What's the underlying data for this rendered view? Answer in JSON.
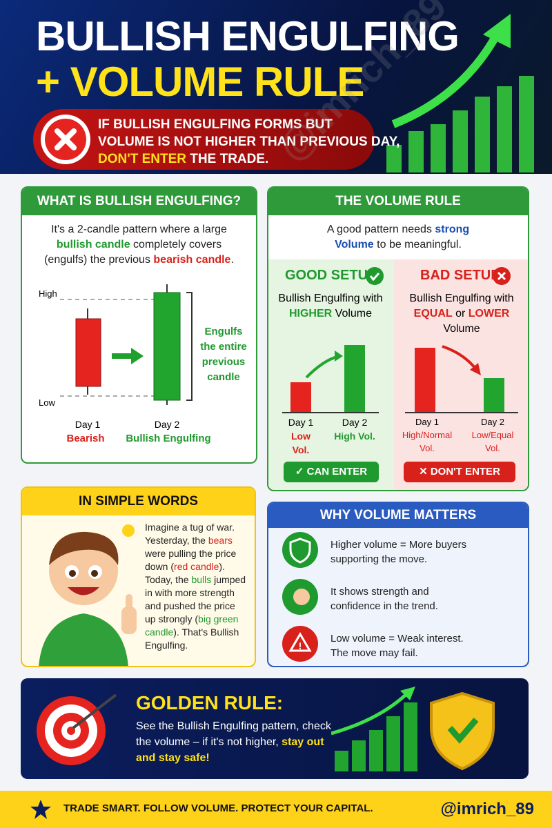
{
  "header": {
    "title_line1": "BULLISH ENGULFING",
    "title_line2": "+ VOLUME RULE",
    "watermark": "@imrich_89"
  },
  "warning": {
    "line1": "IF BULLISH ENGULFING FORMS BUT",
    "line2": "VOLUME IS NOT HIGHER THAN PREVIOUS DAY,",
    "emphasis": "DON'T ENTER",
    "end": " THE TRADE."
  },
  "what_is": {
    "title": "WHAT IS BULLISH ENGULFING?",
    "text": [
      "It's a 2-candle pattern where a large ",
      "bullish candle",
      " completely covers (engulfs) the previous ",
      "bearish candle",
      "."
    ],
    "high": "High",
    "low": "Low",
    "day1": "Day 1",
    "day1_label": "Bearish",
    "day2": "Day 2",
    "day2_label": "Bullish Engulfing",
    "engulfs": "Engulfs the entire previous candle"
  },
  "volume_rule": {
    "title": "THE VOLUME RULE",
    "intro": [
      "A good pattern needs ",
      "strong Volume",
      " to be meaningful."
    ],
    "good": {
      "title": "GOOD SETUP",
      "desc": [
        "Bullish Engulfing with ",
        "HIGHER",
        " Volume"
      ],
      "day1": "Day 1",
      "day1_vol": "Low Vol.",
      "day2": "Day 2",
      "day2_vol": "High Vol.",
      "button": "CAN ENTER"
    },
    "bad": {
      "title": "BAD SETUP",
      "desc": [
        "Bullish Engulfing with ",
        "EQUAL",
        " or ",
        "LOWER",
        " Volume"
      ],
      "day1": "Day 1",
      "day1_vol": "High/Normal Vol.",
      "day2": "Day 2",
      "day2_vol": "Low/Equal Vol.",
      "button": "DON'T ENTER"
    }
  },
  "simple_words": {
    "title": "IN SIMPLE WORDS",
    "text": [
      "Imagine a tug of war. Yesterday, the ",
      "bears",
      " were pulling the price down (",
      "red candle",
      "). Today, the ",
      "bulls",
      " jumped in with more strength and pushed the price up strongly (",
      "big green candle",
      "). That's Bullish Engulfing."
    ]
  },
  "why": {
    "title": "WHY VOLUME MATTERS",
    "items": [
      "Higher volume = More buyers supporting the move.",
      "It shows strength and confidence in the trend.",
      "Low volume = Weak interest. The move may fail."
    ]
  },
  "golden": {
    "title": "GOLDEN RULE:",
    "text": "See the Bullish Engulfing pattern, check the volume – if it's not higher, ",
    "highlight": "stay out and stay safe!"
  },
  "footer": {
    "slogan": "TRADE SMART. FOLLOW VOLUME. PROTECT YOUR CAPITAL.",
    "handle": "@imrich_89"
  }
}
